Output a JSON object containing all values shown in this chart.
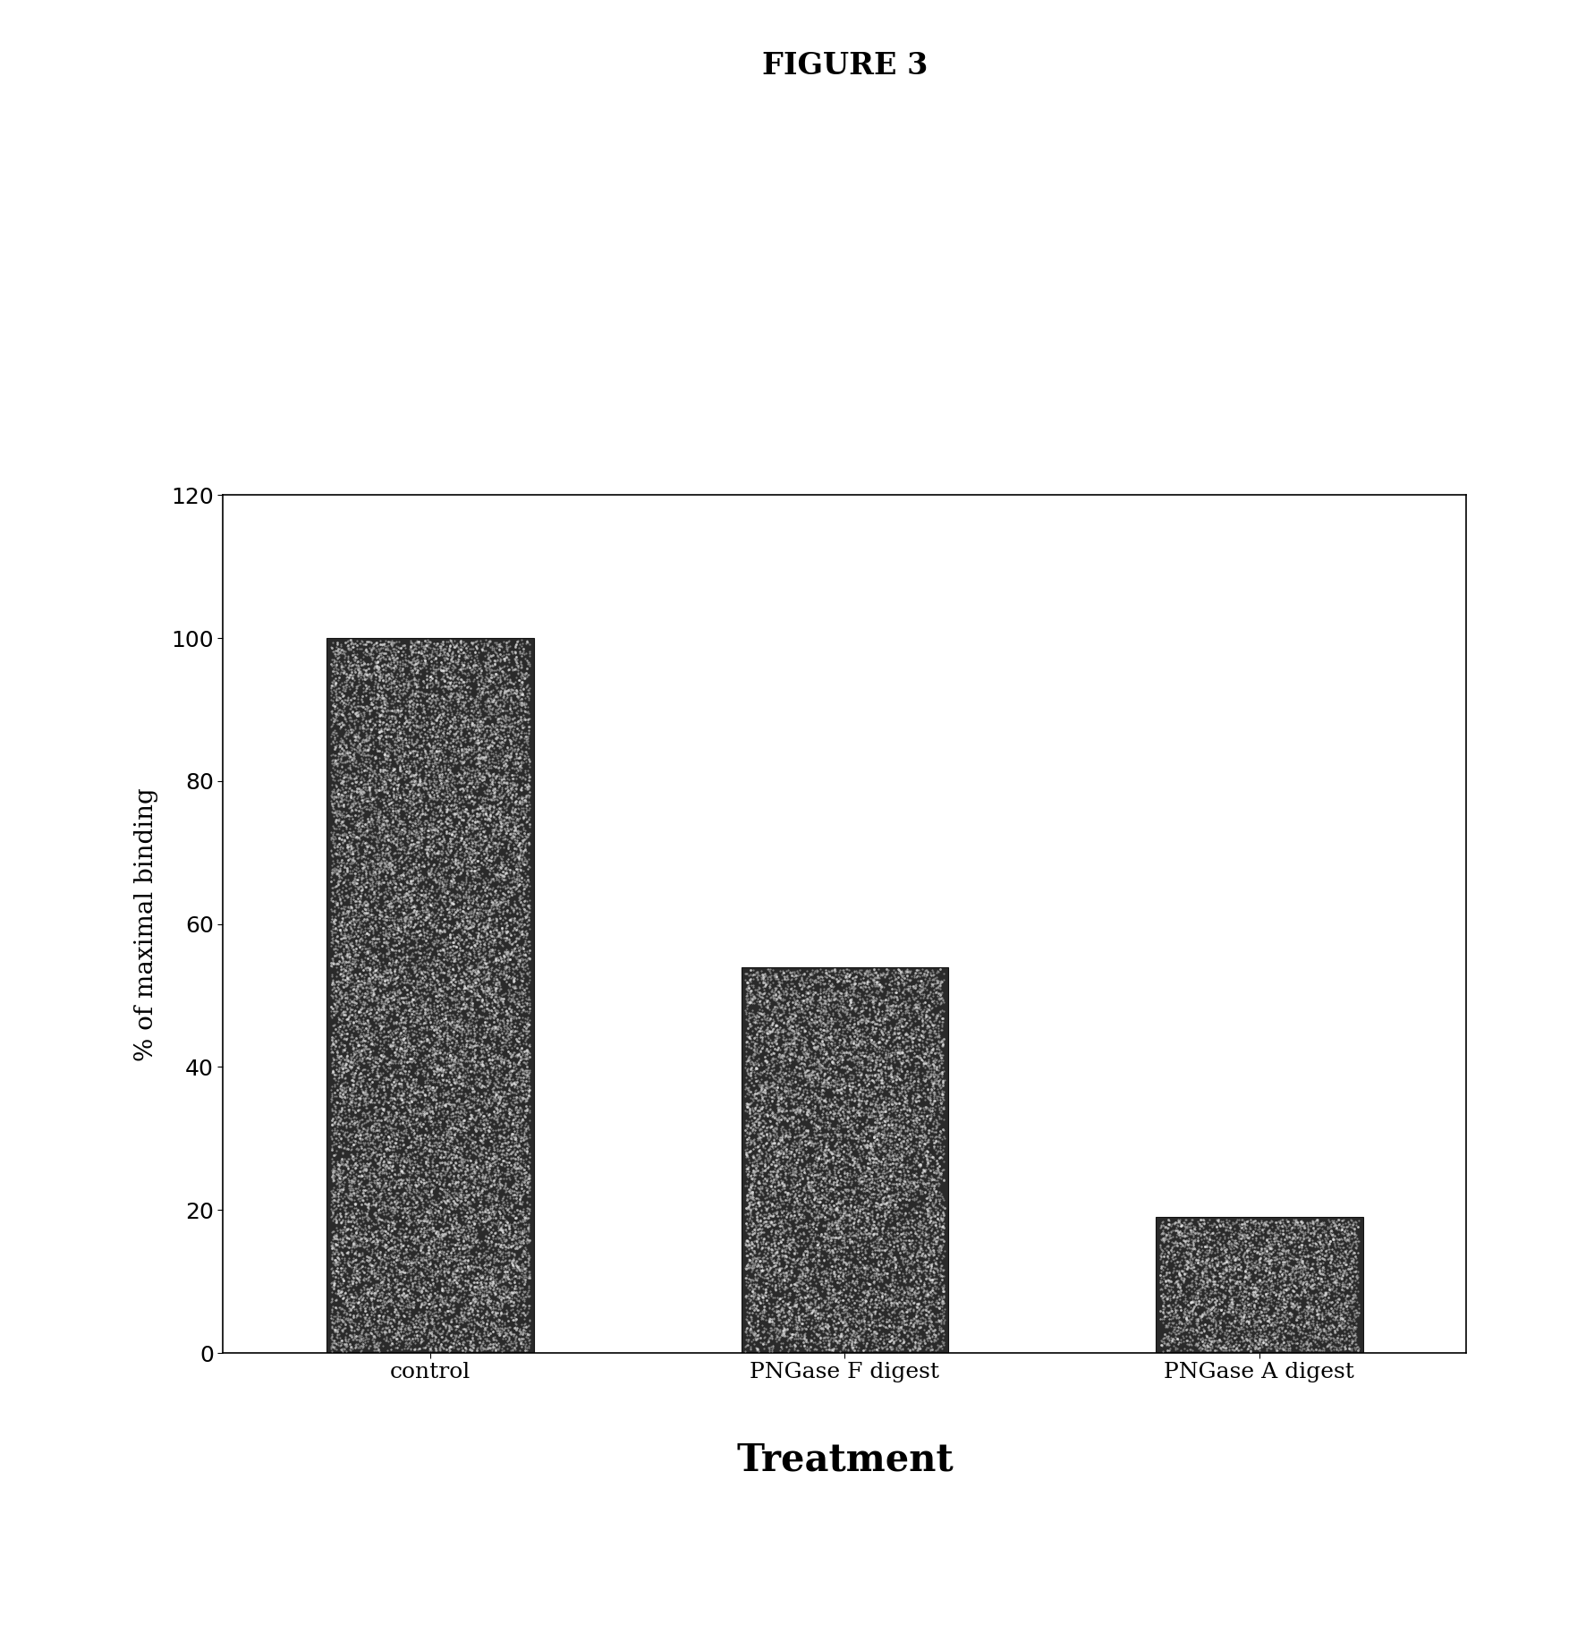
{
  "title": "FIGURE 3",
  "categories": [
    "control",
    "PNGase F digest",
    "PNGase A digest"
  ],
  "values": [
    100,
    54,
    19
  ],
  "bar_color": "#2a2a2a",
  "xlabel": "Treatment",
  "ylabel": "% of maximal binding",
  "ylim": [
    0,
    120
  ],
  "yticks": [
    0,
    20,
    40,
    60,
    80,
    100,
    120
  ],
  "title_fontsize": 24,
  "xlabel_fontsize": 30,
  "ylabel_fontsize": 20,
  "tick_fontsize": 18,
  "plot_bg_color": "#ffffff",
  "figure_bg_color": "#ffffff",
  "bar_width": 0.5
}
